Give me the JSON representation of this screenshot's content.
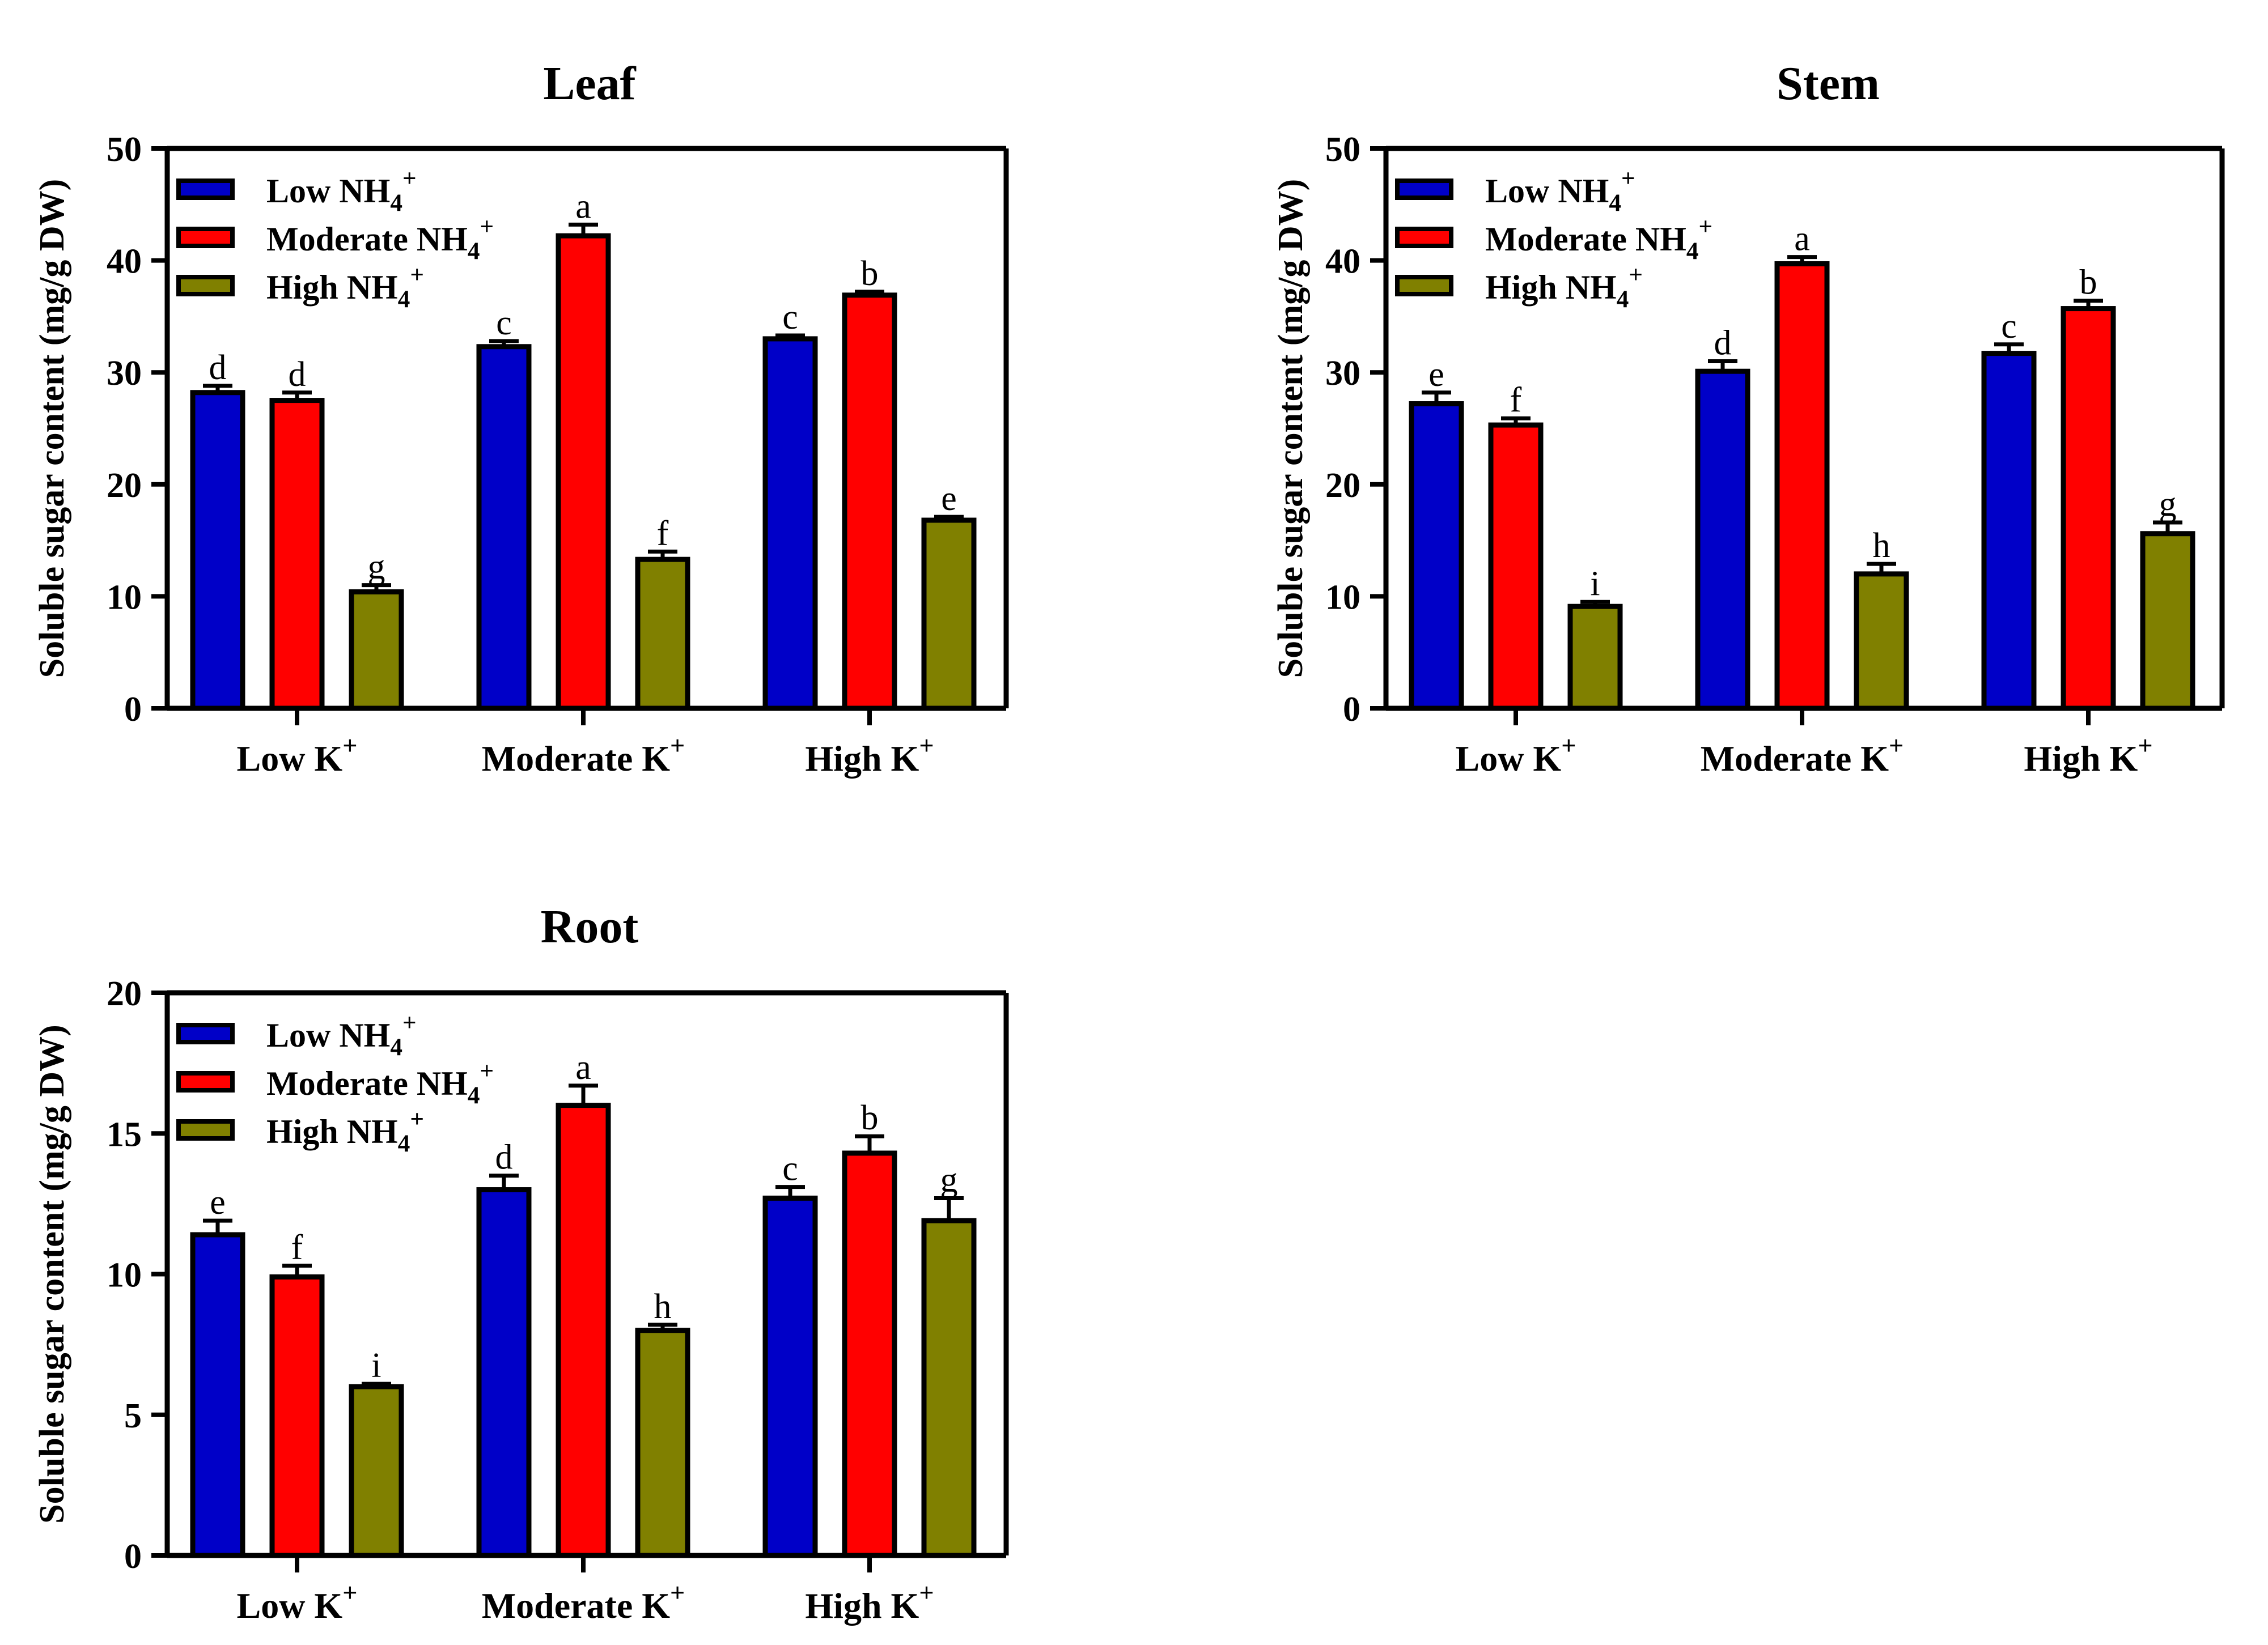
{
  "chart_data": [
    {
      "type": "bar",
      "title": "Leaf",
      "ylabel": "Soluble sugar content (mg/g DW)",
      "xlabel": "",
      "ylim": [
        0,
        50
      ],
      "yticks": [
        0,
        10,
        20,
        30,
        40,
        50
      ],
      "legend": {
        "placement": "top-left"
      },
      "categories": [
        {
          "base": "Low K",
          "sup": "+"
        },
        {
          "base": "Moderate K",
          "sup": "+"
        },
        {
          "base": "High K",
          "sup": "+"
        }
      ],
      "series": [
        {
          "name": "Low NH4+",
          "label": {
            "base": "Low NH",
            "sub": "4",
            "sup": "+"
          },
          "color": "#0000c8",
          "values": [
            28.2,
            32.3,
            33.0
          ],
          "errors": [
            0.6,
            0.5,
            0.3
          ],
          "letters": [
            "d",
            "c",
            "c"
          ]
        },
        {
          "name": "Moderate NH4+",
          "label": {
            "base": "Moderate NH",
            "sub": "4",
            "sup": "+"
          },
          "color": "#ff0000",
          "values": [
            27.5,
            42.2,
            36.9
          ],
          "errors": [
            0.7,
            1.0,
            0.3
          ],
          "letters": [
            "d",
            "a",
            "b"
          ]
        },
        {
          "name": "High NH4+",
          "label": {
            "base": "High NH",
            "sub": "4",
            "sup": "+"
          },
          "color": "#808000",
          "values": [
            10.4,
            13.3,
            16.8
          ],
          "errors": [
            0.6,
            0.7,
            0.3
          ],
          "letters": [
            "g",
            "f",
            "e"
          ]
        }
      ]
    },
    {
      "type": "bar",
      "title": "Stem",
      "ylabel": "Soluble sugar content (mg/g DW)",
      "xlabel": "",
      "ylim": [
        0,
        50
      ],
      "yticks": [
        0,
        10,
        20,
        30,
        40,
        50
      ],
      "legend": {
        "placement": "top-left"
      },
      "categories": [
        {
          "base": "Low K",
          "sup": "+"
        },
        {
          "base": "Moderate K",
          "sup": "+"
        },
        {
          "base": "High K",
          "sup": "+"
        }
      ],
      "series": [
        {
          "name": "Low NH4+",
          "label": {
            "base": "Low NH",
            "sub": "4",
            "sup": "+"
          },
          "color": "#0000c8",
          "values": [
            27.2,
            30.1,
            31.7
          ],
          "errors": [
            1.0,
            0.9,
            0.8
          ],
          "letters": [
            "e",
            "d",
            "c"
          ]
        },
        {
          "name": "Moderate NH4+",
          "label": {
            "base": "Moderate NH",
            "sub": "4",
            "sup": "+"
          },
          "color": "#ff0000",
          "values": [
            25.3,
            39.7,
            35.7
          ],
          "errors": [
            0.6,
            0.6,
            0.7
          ],
          "letters": [
            "f",
            "a",
            "b"
          ]
        },
        {
          "name": "High NH4+",
          "label": {
            "base": "High NH",
            "sub": "4",
            "sup": "+"
          },
          "color": "#808000",
          "values": [
            9.1,
            12.0,
            15.6
          ],
          "errors": [
            0.4,
            0.9,
            1.0
          ],
          "letters": [
            "i",
            "h",
            "g"
          ]
        }
      ]
    },
    {
      "type": "bar",
      "title": "Root",
      "ylabel": "Soluble sugar content (mg/g DW)",
      "xlabel": "",
      "ylim": [
        0,
        20
      ],
      "yticks": [
        0,
        5,
        10,
        15,
        20
      ],
      "legend": {
        "placement": "top-left"
      },
      "categories": [
        {
          "base": "Low K",
          "sup": "+"
        },
        {
          "base": "Moderate K",
          "sup": "+"
        },
        {
          "base": "High K",
          "sup": "+"
        }
      ],
      "series": [
        {
          "name": "Low NH4+",
          "label": {
            "base": "Low NH",
            "sub": "4",
            "sup": "+"
          },
          "color": "#0000c8",
          "values": [
            11.4,
            13.0,
            12.7
          ],
          "errors": [
            0.5,
            0.5,
            0.4
          ],
          "letters": [
            "e",
            "d",
            "c"
          ]
        },
        {
          "name": "Moderate NH4+",
          "label": {
            "base": "Moderate NH",
            "sub": "4",
            "sup": "+"
          },
          "color": "#ff0000",
          "values": [
            9.9,
            16.0,
            14.3
          ],
          "errors": [
            0.4,
            0.7,
            0.6
          ],
          "letters": [
            "f",
            "a",
            "b"
          ]
        },
        {
          "name": "High NH4+",
          "label": {
            "base": "High NH",
            "sub": "4",
            "sup": "+"
          },
          "color": "#808000",
          "values": [
            6.0,
            8.0,
            11.9
          ],
          "errors": [
            0.1,
            0.2,
            0.8
          ],
          "letters": [
            "i",
            "h",
            "g"
          ]
        }
      ]
    }
  ]
}
